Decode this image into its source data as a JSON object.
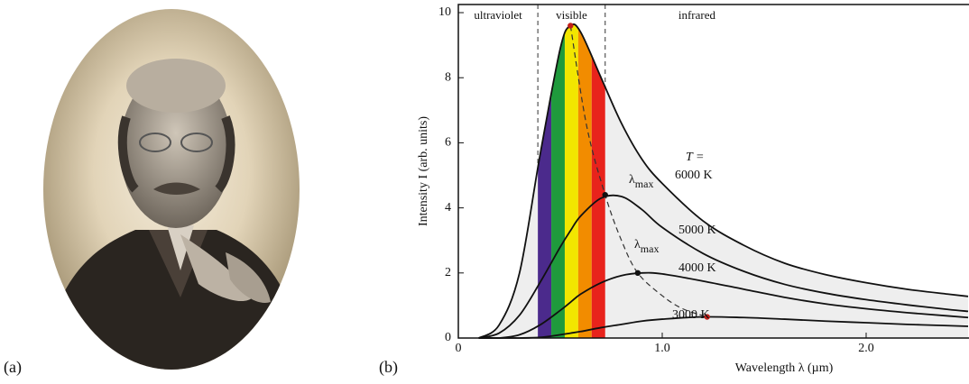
{
  "chart_data": {
    "type": "line",
    "panel_labels": [
      "(a)",
      "(b)"
    ],
    "x_label": "Wavelength λ (µm)",
    "y_label": "Intensity  I  (arb. units)",
    "xlim": [
      0,
      2.5
    ],
    "ylim": [
      0,
      10.25
    ],
    "xticks": [
      0,
      {
        "value": 1,
        "label": "1.0"
      },
      {
        "value": 2,
        "label": "2.0"
      }
    ],
    "yticks": [
      0,
      2,
      4,
      6,
      8,
      10
    ],
    "regions": [
      {
        "label": "ultraviolet",
        "range": [
          0,
          0.39
        ]
      },
      {
        "label": "visible",
        "range": [
          0.39,
          0.72
        ]
      },
      {
        "label": "infrared",
        "range": [
          0.72,
          2.5
        ]
      }
    ],
    "spectrum_colors": [
      "#4b2a8c",
      "#1f9a3c",
      "#f2e600",
      "#f28c00",
      "#e8231c"
    ],
    "temperature_label": "T =",
    "lambda_label": {
      "symbol": "λ",
      "subscript": "max"
    },
    "x": [
      0.1,
      0.2,
      0.3,
      0.4,
      0.5,
      0.55,
      0.6,
      0.7,
      0.8,
      0.9,
      1.0,
      1.2,
      1.4,
      1.6,
      1.8,
      2.0,
      2.2,
      2.4,
      2.5
    ],
    "series": [
      {
        "name": "6000 K",
        "color": "#111111",
        "peak": [
          0.55,
          9.6
        ],
        "values": [
          0,
          0.4,
          2.0,
          5.6,
          8.9,
          9.6,
          9.4,
          8.0,
          6.6,
          5.5,
          4.75,
          3.6,
          2.85,
          2.3,
          1.95,
          1.7,
          1.5,
          1.35,
          1.28
        ]
      },
      {
        "name": "5000 K",
        "color": "#111111",
        "peak": [
          0.72,
          4.4
        ],
        "values": [
          0,
          0.15,
          0.7,
          1.7,
          2.8,
          3.3,
          3.75,
          4.3,
          4.35,
          3.95,
          3.4,
          2.6,
          2.05,
          1.65,
          1.38,
          1.18,
          1.02,
          0.88,
          0.82
        ]
      },
      {
        "name": "4000 K",
        "color": "#111111",
        "peak": [
          0.88,
          2.0
        ],
        "values": [
          0,
          0,
          0.1,
          0.4,
          0.85,
          1.1,
          1.35,
          1.7,
          1.92,
          2.0,
          1.97,
          1.75,
          1.5,
          1.25,
          1.05,
          0.9,
          0.78,
          0.68,
          0.63
        ]
      },
      {
        "name": "3000 K",
        "color": "#111111",
        "peak": [
          1.22,
          0.65
        ],
        "values": [
          0,
          0,
          0,
          0.02,
          0.1,
          0.15,
          0.2,
          0.32,
          0.42,
          0.52,
          0.58,
          0.65,
          0.63,
          0.58,
          0.52,
          0.47,
          0.42,
          0.38,
          0.36
        ]
      }
    ],
    "lambda_max_locus": {
      "x": [
        0.55,
        0.63,
        0.72,
        0.8,
        0.88,
        1.0,
        1.1,
        1.22
      ],
      "y": [
        9.6,
        6.5,
        4.4,
        3.0,
        2.0,
        1.3,
        0.9,
        0.65
      ]
    },
    "area_color": "#eeeeee",
    "peak_color": "#c0201a"
  }
}
